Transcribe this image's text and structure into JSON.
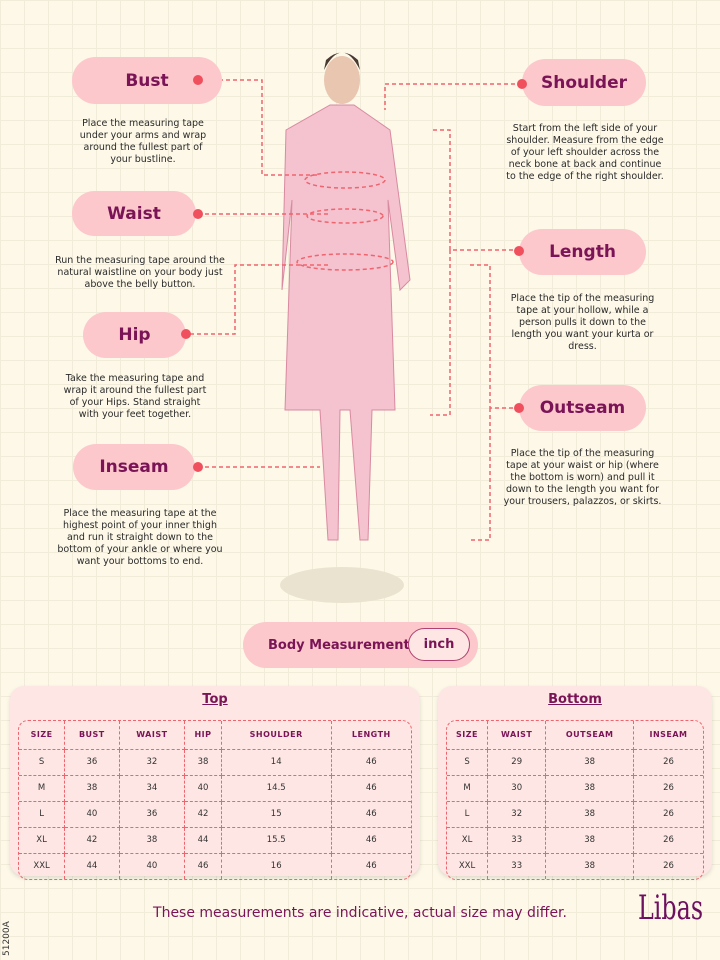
{
  "measures": [
    {
      "label": "Bust",
      "desc": "Place the measuring tape under your arms and wrap around the fullest part of your bustline."
    },
    {
      "label": "Waist",
      "desc": "Run the measuring tape around the natural waistline on your body just above the belly button."
    },
    {
      "label": "Hip",
      "desc": "Take the measuring tape and wrap it around the fullest part of your Hips. Stand straight with your feet together."
    },
    {
      "label": "Inseam",
      "desc": "Place the measuring tape at the highest point of your inner thigh and run it straight down to the bottom of your ankle or where you want your bottoms to end."
    },
    {
      "label": "Shoulder",
      "desc": "Start from the left side of your shoulder. Measure from the edge of your left shoulder across the neck bone at back and continue to the edge of the right shoulder."
    },
    {
      "label": "Length",
      "desc": "Place the tip of the measuring tape at your hollow, while a person pulls it down to the length you want your kurta or dress."
    },
    {
      "label": "Outseam",
      "desc": "Place the tip of the measuring tape at your waist or hip (where the bottom is worn) and pull it down to the length you want for your trousers, palazzos, or skirts."
    }
  ],
  "unit_toggle": {
    "label": "Body Measurement",
    "unit": "inch"
  },
  "top": {
    "title": "Top",
    "headers": [
      "SIZE",
      "BUST",
      "WAIST",
      "HIP",
      "SHOULDER",
      "LENGTH"
    ],
    "rows": [
      [
        "S",
        "36",
        "32",
        "38",
        "14",
        "46"
      ],
      [
        "M",
        "38",
        "34",
        "40",
        "14.5",
        "46"
      ],
      [
        "L",
        "40",
        "36",
        "42",
        "15",
        "46"
      ],
      [
        "XL",
        "42",
        "38",
        "44",
        "15.5",
        "46"
      ],
      [
        "XXL",
        "44",
        "40",
        "46",
        "16",
        "46"
      ]
    ]
  },
  "bottom": {
    "title": "Bottom",
    "headers": [
      "SIZE",
      "WAIST",
      "OUTSEAM",
      "INSEAM"
    ],
    "rows": [
      [
        "S",
        "29",
        "38",
        "26"
      ],
      [
        "M",
        "30",
        "38",
        "26"
      ],
      [
        "L",
        "32",
        "38",
        "26"
      ],
      [
        "XL",
        "33",
        "38",
        "26"
      ],
      [
        "XXL",
        "33",
        "38",
        "26"
      ]
    ]
  },
  "footer": {
    "note": "These measurements are indicative, actual size may differ.",
    "brand": "Libas",
    "code": "51200A"
  },
  "colors": {
    "accent": "#7a1457",
    "pill": "#fcc8cb",
    "dashed": "#f0646e"
  }
}
